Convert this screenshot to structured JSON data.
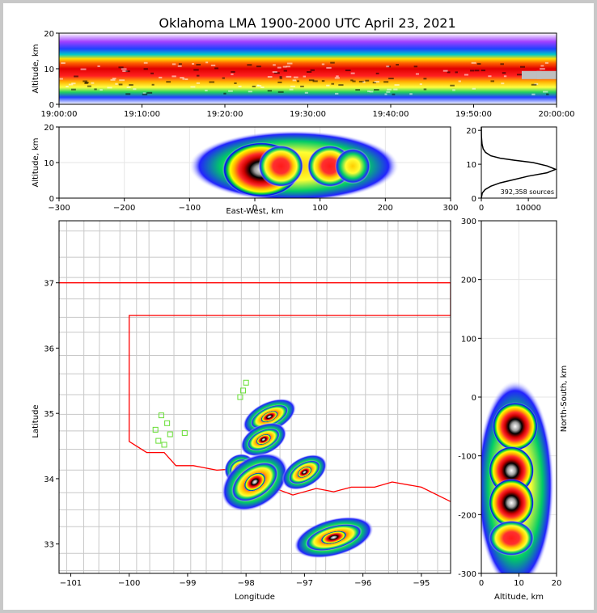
{
  "title": "Oklahoma LMA 1900-2000 UTC April 23, 2021",
  "chart_data": [
    {
      "type": "heatmap",
      "panel": "time-altitude",
      "ylabel": "Altitude, km",
      "xlabel": "",
      "xlim": [
        "19:00:00",
        "20:00:00"
      ],
      "ylim": [
        0,
        20
      ],
      "xticks": [
        "19:00:00",
        "19:10:00",
        "19:20:00",
        "19:30:00",
        "19:40:00",
        "19:50:00",
        "20:00:00"
      ],
      "yticks": [
        0,
        10,
        20
      ],
      "density_band_km": [
        3,
        12
      ],
      "peak_altitude_km": 8
    },
    {
      "type": "heatmap",
      "panel": "east-west-altitude",
      "xlabel": "East-West, km",
      "ylabel": "Altitude, km",
      "xlim": [
        -300,
        300
      ],
      "ylim": [
        0,
        20
      ],
      "xticks": [
        -300,
        -200,
        -100,
        0,
        100,
        200,
        300
      ],
      "yticks": [
        0,
        10,
        20
      ],
      "grid": true,
      "cells": [
        {
          "x": 10,
          "z": 8,
          "level": "peak"
        },
        {
          "x": 115,
          "z": 9,
          "level": "high"
        },
        {
          "x": 40,
          "z": 9,
          "level": "high"
        },
        {
          "x": 150,
          "z": 9,
          "level": "mid"
        }
      ]
    },
    {
      "type": "line",
      "panel": "altitude-histogram",
      "annotation": "392,358 sources",
      "xlim": [
        0,
        16000
      ],
      "ylim": [
        0,
        21
      ],
      "xticks": [
        0,
        10000
      ],
      "yticks": [
        0,
        10,
        20
      ],
      "series": [
        {
          "x": [
            0,
            200,
            800,
            2000,
            4000,
            7000,
            10000,
            14000,
            15800,
            14000,
            11000,
            7000,
            4000,
            2000,
            900,
            400,
            150,
            40,
            0
          ],
          "y": [
            0,
            1.5,
            2.5,
            3.5,
            4.5,
            5.5,
            6.5,
            7.5,
            8.5,
            9.5,
            10.5,
            11.2,
            11.8,
            12.5,
            13.5,
            14.5,
            16,
            18,
            21
          ]
        }
      ]
    },
    {
      "type": "heatmap",
      "panel": "plan-view",
      "xlabel": "Longitude",
      "ylabel": "Latitude",
      "xlim": [
        -101.2,
        -94.5
      ],
      "ylim": [
        32.55,
        37.95
      ],
      "xticks": [
        -101,
        -100,
        -99,
        -98,
        -97,
        -96,
        -95
      ],
      "yticks": [
        33,
        34,
        35,
        36,
        37
      ],
      "state_border": {
        "color": "#ff0000",
        "points": [
          [
            -101.2,
            37
          ],
          [
            -94.5,
            37
          ],
          [
            -94.5,
            36.5
          ],
          [
            -100,
            36.5
          ],
          [
            -100,
            34.57
          ],
          [
            -99.7,
            34.4
          ],
          [
            -99.4,
            34.4
          ],
          [
            -99.2,
            34.2
          ],
          [
            -98.9,
            34.2
          ],
          [
            -98.5,
            34.13
          ],
          [
            -98.2,
            34.15
          ],
          [
            -97.8,
            33.88
          ],
          [
            -97.5,
            33.85
          ],
          [
            -97.2,
            33.75
          ],
          [
            -96.8,
            33.85
          ],
          [
            -96.5,
            33.8
          ],
          [
            -96.2,
            33.87
          ],
          [
            -95.8,
            33.87
          ],
          [
            -95.5,
            33.95
          ],
          [
            -95,
            33.87
          ],
          [
            -94.5,
            33.65
          ]
        ]
      },
      "storm_cores": [
        {
          "lon": -97.6,
          "lat": 34.95,
          "rx": 0.35,
          "ry": 0.12,
          "rot": -25
        },
        {
          "lon": -97.7,
          "lat": 34.6,
          "rx": 0.3,
          "ry": 0.12,
          "rot": -25
        },
        {
          "lon": -98.1,
          "lat": 34.15,
          "rx": 0.2,
          "ry": 0.12,
          "rot": -30
        },
        {
          "lon": -97.85,
          "lat": 33.95,
          "rx": 0.45,
          "ry": 0.2,
          "rot": -35
        },
        {
          "lon": -97.0,
          "lat": 34.1,
          "rx": 0.3,
          "ry": 0.12,
          "rot": -30
        },
        {
          "lon": -96.5,
          "lat": 33.1,
          "rx": 0.5,
          "ry": 0.15,
          "rot": -15
        }
      ],
      "stations": [
        {
          "lon": -99.45,
          "lat": 34.97
        },
        {
          "lon": -99.35,
          "lat": 34.85
        },
        {
          "lon": -99.55,
          "lat": 34.75
        },
        {
          "lon": -99.3,
          "lat": 34.68
        },
        {
          "lon": -99.5,
          "lat": 34.58
        },
        {
          "lon": -99.4,
          "lat": 34.52
        },
        {
          "lon": -99.05,
          "lat": 34.7
        },
        {
          "lon": -98.0,
          "lat": 35.47
        },
        {
          "lon": -98.05,
          "lat": 35.35
        },
        {
          "lon": -98.1,
          "lat": 35.25
        }
      ]
    },
    {
      "type": "heatmap",
      "panel": "altitude-north-south",
      "xlabel": "Altitude, km",
      "ylabel": "North-South, km",
      "xlim": [
        0,
        20
      ],
      "ylim": [
        -300,
        300
      ],
      "xticks": [
        0,
        10,
        20
      ],
      "yticks": [
        -300,
        -200,
        -100,
        0,
        100,
        200,
        300
      ],
      "grid": true,
      "cells": [
        {
          "x": 9,
          "y": -50,
          "level": "peak"
        },
        {
          "x": 8,
          "y": -125,
          "level": "peak"
        },
        {
          "x": 8,
          "y": -180,
          "level": "peak"
        },
        {
          "x": 8,
          "y": -240,
          "level": "high"
        }
      ]
    }
  ]
}
